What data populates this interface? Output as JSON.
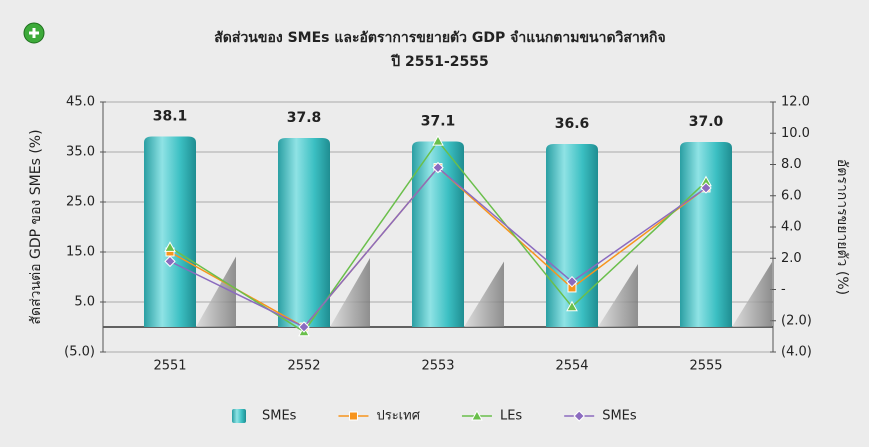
{
  "chart_data": {
    "type": "bar",
    "title": "สัดส่วนของ SMEs และอัตราการขยายตัว GDP จำแนกตามขนาดวิสาหกิจ",
    "subtitle": "ปี 2551-2555",
    "y_label": "สัดส่วนต่อ GDP ของ SMEs (%)",
    "y2_label": "อัตราการขยายตัว (%)",
    "categories": [
      "2551",
      "2552",
      "2553",
      "2554",
      "2555"
    ],
    "series": [
      {
        "name": "SMEs",
        "type": "bar",
        "axis": "y",
        "color": "#3bbfc2",
        "values": [
          38.1,
          37.8,
          37.1,
          36.6,
          37.0
        ],
        "value_labels": [
          "38.1",
          "37.8",
          "37.1",
          "36.6",
          "37.0"
        ]
      },
      {
        "name": "ประเทศ",
        "type": "line",
        "axis": "y2",
        "color": "#f7941d",
        "marker": "square",
        "values": [
          2.4,
          -2.4,
          7.8,
          0.1,
          6.5
        ]
      },
      {
        "name": "LEs",
        "type": "line",
        "axis": "y2",
        "color": "#6abf4b",
        "marker": "triangle",
        "values": [
          2.7,
          -2.7,
          9.5,
          -1.1,
          6.9
        ]
      },
      {
        "name": "SMEs",
        "type": "line",
        "axis": "y2",
        "color": "#8b6bbf",
        "marker": "diamond",
        "values": [
          1.8,
          -2.4,
          7.8,
          0.5,
          6.5
        ]
      }
    ],
    "ylim": [
      -5,
      45
    ],
    "yticks": [
      {
        "value": -5,
        "label": "(5.0)"
      },
      {
        "value": 5,
        "label": "5.0"
      },
      {
        "value": 15,
        "label": "15.0"
      },
      {
        "value": 25,
        "label": "25.0"
      },
      {
        "value": 35,
        "label": "35.0"
      },
      {
        "value": 45,
        "label": "45.0"
      }
    ],
    "y2lim": [
      -4,
      12
    ],
    "y2ticks": [
      {
        "value": -4,
        "label": "(4.0)"
      },
      {
        "value": -2,
        "label": "(2.0)"
      },
      {
        "value": 0,
        "label": "-"
      },
      {
        "value": 2,
        "label": "2.0"
      },
      {
        "value": 4,
        "label": "4.0"
      },
      {
        "value": 6,
        "label": "6.0"
      },
      {
        "value": 8,
        "label": "8.0"
      },
      {
        "value": 10,
        "label": "10.0"
      },
      {
        "value": 12,
        "label": "12.0"
      }
    ],
    "grid": true,
    "legend": "bottom"
  }
}
